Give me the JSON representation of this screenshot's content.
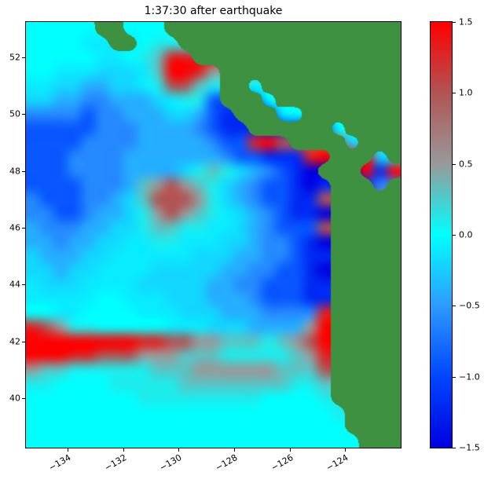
{
  "chart_data": {
    "type": "heatmap",
    "title": "1:37:30 after earthquake",
    "background_color": "#ffffff",
    "grid_lines": false,
    "x_axis": {
      "ticks": [
        -134,
        -132,
        -130,
        -128,
        -126,
        -124
      ],
      "tick_labels": [
        "−134",
        "−132",
        "−130",
        "−128",
        "−126",
        "−124"
      ],
      "range": [
        -135.5,
        -122.0
      ],
      "tick_rotation_deg": 30
    },
    "y_axis": {
      "ticks": [
        52,
        50,
        48,
        46,
        44,
        42,
        40
      ],
      "tick_labels": [
        "52",
        "50",
        "48",
        "46",
        "44",
        "42",
        "40"
      ],
      "range": [
        38.25,
        53.25
      ]
    },
    "colorbar": {
      "min": -1.5,
      "max": 1.5,
      "tick_values": [
        1.5,
        1.0,
        0.5,
        0.0,
        -0.5,
        -1.0,
        -1.5
      ],
      "tick_labels": [
        "1.5",
        "1.0",
        "0.5",
        "0.0",
        "−0.5",
        "−1.0",
        "−1.5"
      ],
      "stops": [
        {
          "v": -1.5,
          "c": "#0000e0"
        },
        {
          "v": -1.0,
          "c": "#0046ff"
        },
        {
          "v": -0.5,
          "c": "#2e9aff"
        },
        {
          "v": 0.0,
          "c": "#00ffff"
        },
        {
          "v": 0.5,
          "c": "#999999"
        },
        {
          "v": 1.0,
          "c": "#b05454"
        },
        {
          "v": 1.5,
          "c": "#ff0000"
        }
      ]
    },
    "land_color": "#3d9140",
    "grid": {
      "cols": 27,
      "rows": 30,
      "lon_range": [
        -135.5,
        -122.0
      ],
      "lat_range": [
        38.25,
        53.25
      ],
      "legend": {
        "A": -1.5,
        "B": -1.2,
        "C": -0.9,
        "D": -0.6,
        "E": -0.4,
        "F": -0.2,
        "G": -0.1,
        "H": 0.0,
        "I": 0.1,
        "J": 0.3,
        "K": 0.5,
        "M": 1.0,
        "N": 1.3,
        "O": 1.5,
        "X": "land"
      },
      "rows_data": [
        "HHHHHXXHHHXXXXXXXXXXXXXXXXX",
        "HHHHGGXXHIIXXXXXXXXXXXXXXXX",
        "HHHHHGGHIJNNXXXXXXXXXXXXXXX",
        "HHGGGFFFGJOONKXXXXXXXXXXXXX",
        "GGFFEEFFGIMMJIXXHXXXXXXXXXX",
        "FFEEDDEEEFGIICXXXHXXXXXXXXX",
        "DDDDCDDEEEFFECBXXXGHXXXXXXX",
        "CCCCCDDDEEEEDCBBXXXXXXHXXXX",
        "CCCCDDDDEEEEEDCCNOMXXXXFXXX",
        "CCCDDDDEEEEEEEDCCBBBNOXXXFX",
        "CCCDDDDEEEEFIJIFEDCBAXXXOBO",
        "CCCCDDDEJKMKJIFEDCCBABXXXDX",
        "DCCCDDEFJMMMKIFEDCCBBMXXXXX",
        "DDCCDEEFIKMKJIGFEDCBBAXXXXX",
        "EDDDEEFFIJJIIGGFEDCCCMXXXXX",
        "EEDEEFFGGIIGGGFFEDDCBAXXXXX",
        "FEEEFFGGGGGGFFFEEDDCBBXXXXX",
        "FFEFFGGGGFFFFFEEDDCCBAXXXXX",
        "GFFFGGGGFFFFFEEDDCCCBBXXXXX",
        "GGGGGHHGGGFFFEEEDCCCBBXXXXX",
        "HHGGHHHHGGGFFFEEEDDDDNXXXXX",
        "NMKIIHHHHHGGGFFFEEEEKOXXXXX",
        "OOOOOOOONNMMKKJJJIJKMOXXXXX",
        "OOONNMMMKKKJJJIIIIIJKNXXXXX",
        "KJJIIIIIIJJJKKKKKKJJJMXXXXX",
        "IIHHHHIIIIIJJJJJJJJIIJXXXXX",
        "HHHHHHHHIIIIIIIIIHHHHIXXXXX",
        "HHHHHHHHHHHHHHHHHHHHHHIXXXX",
        "HHHHHHHHHHHHHHHHHHHHHHHXXXX",
        "HHHHHHHHHHHHHHHHHHHHHHHHXXX"
      ]
    }
  }
}
